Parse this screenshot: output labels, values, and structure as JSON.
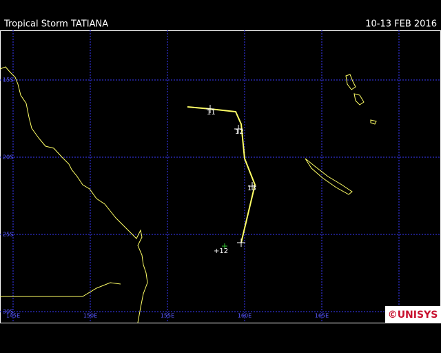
{
  "header": {
    "title": "Tropical Storm TATIANA",
    "date": "10-13 FEB 2016"
  },
  "grid": {
    "latitudes": [
      "15S",
      "20S",
      "25S",
      "30S"
    ],
    "longitudes": [
      "145E",
      "150E",
      "155E",
      "160E",
      "165E"
    ]
  },
  "track": {
    "labels": [
      "11",
      "12",
      "13"
    ],
    "forecast_label": "+12"
  },
  "logo": {
    "text": "©UNISYS"
  }
}
